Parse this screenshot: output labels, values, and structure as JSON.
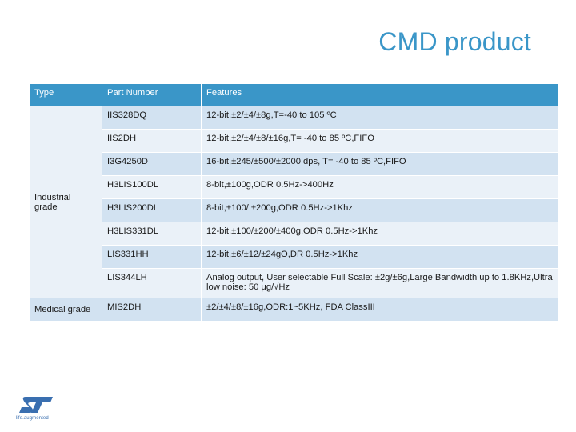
{
  "title": "CMD product",
  "table": {
    "headers": [
      "Type",
      "Part Number",
      "Features"
    ],
    "groups": {
      "industrial": "Industrial\ngrade",
      "medical": "Medical grade"
    },
    "rows": [
      {
        "part": "IIS328DQ",
        "features": "12-bit,±2/±4/±8g,T=-40 to 105 ºC"
      },
      {
        "part": "IIS2DH",
        "features": "12-bit,±2/±4/±8/±16g,T= -40 to 85 ºC,FIFO"
      },
      {
        "part": "I3G4250D",
        "features": "16-bit,±245/±500/±2000 dps, T= -40 to 85 ºC,FIFO"
      },
      {
        "part": "H3LIS100DL",
        "features": "8-bit,±100g,ODR 0.5Hz->400Hz"
      },
      {
        "part": "H3LIS200DL",
        "features": "8-bit,±100/ ±200g,ODR 0.5Hz->1Khz"
      },
      {
        "part": "H3LIS331DL",
        "features": "12-bit,±100/±200/±400g,ODR 0.5Hz->1Khz"
      },
      {
        "part": "LIS331HH",
        "features": "12-bit,±6/±12/±24gO,DR 0.5Hz->1Khz"
      },
      {
        "part": "LIS344LH",
        "features": "Analog output, User selectable Full Scale: ±2g/±6g,Large Bandwidth up to 1.8KHz,Ultra low noise: 50 μg/√Hz"
      },
      {
        "part": "MIS2DH",
        "features": "±2/±4/±8/±16g,ODR:1~5KHz, FDA ClassIII"
      }
    ]
  },
  "logo": {
    "icon": "st-logo-icon",
    "tagline": "life.augmented",
    "color": "#3a6fb0"
  },
  "colors": {
    "accent": "#3a96c8",
    "row_dark": "#d2e2f1",
    "row_light": "#eaf1f8"
  }
}
